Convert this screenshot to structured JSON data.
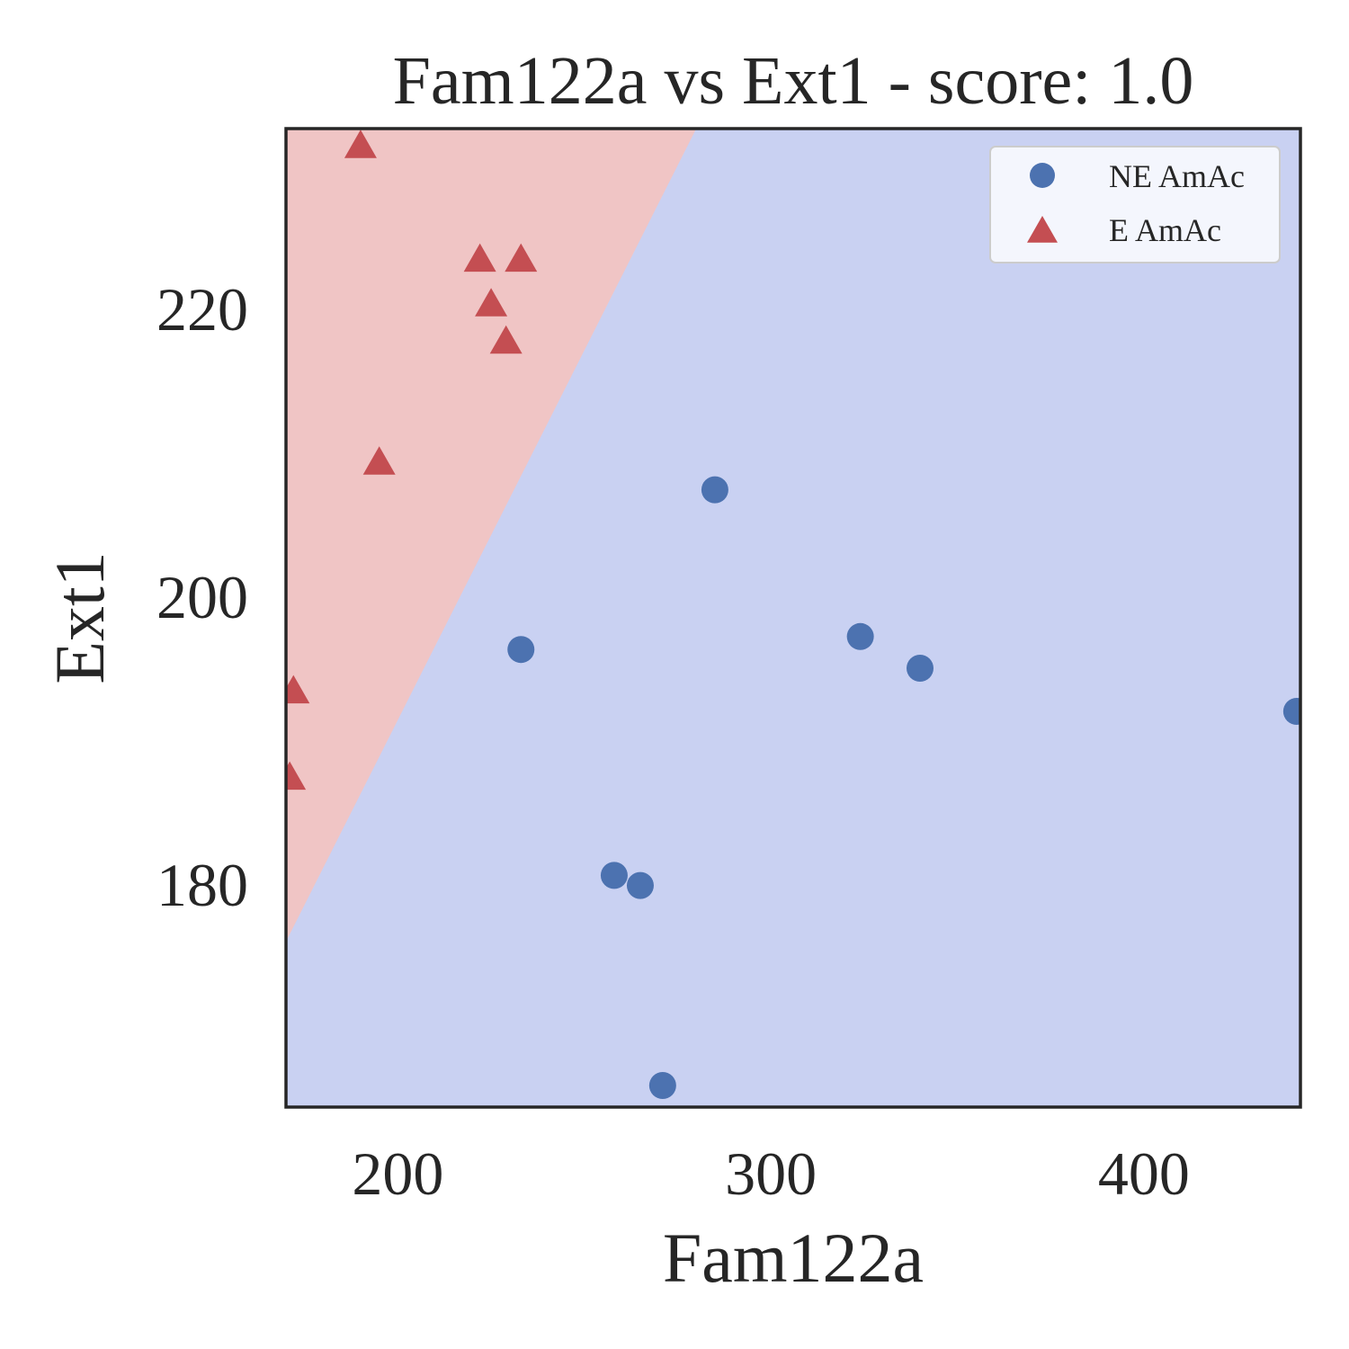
{
  "chart_data": {
    "type": "scatter",
    "title": "Fam122a vs Ext1 - score: 1.0",
    "xlabel": "Fam122a",
    "ylabel": "Ext1",
    "xlim": [
      170,
      442
    ],
    "ylim": [
      164.5,
      232.5
    ],
    "xticks": [
      200,
      300,
      400
    ],
    "yticks": [
      180,
      200,
      220
    ],
    "grid": false,
    "legend_position": "top-right",
    "decision_boundary": {
      "points": [
        [
          170,
          176
        ],
        [
          280,
          232.5
        ]
      ],
      "region_left_color": "#f0c5c5",
      "region_right_color": "#c9d1f2",
      "region_left_class": "E AmAc",
      "region_right_class": "NE AmAc"
    },
    "series": [
      {
        "name": "NE AmAc",
        "marker": "circle",
        "color": "#4c72b0",
        "points": [
          [
            285,
            207.4
          ],
          [
            233,
            196.3
          ],
          [
            324,
            197.2
          ],
          [
            340,
            195.0
          ],
          [
            441,
            192.0
          ],
          [
            258,
            180.6
          ],
          [
            265,
            179.9
          ],
          [
            271,
            166.0
          ]
        ]
      },
      {
        "name": "E AmAc",
        "marker": "triangle",
        "color": "#c44e52",
        "points": [
          [
            190,
            231.3
          ],
          [
            222,
            223.4
          ],
          [
            233,
            223.4
          ],
          [
            225,
            220.3
          ],
          [
            229,
            217.7
          ],
          [
            195,
            209.3
          ],
          [
            172,
            193.4
          ],
          [
            171,
            187.4
          ]
        ]
      }
    ]
  }
}
